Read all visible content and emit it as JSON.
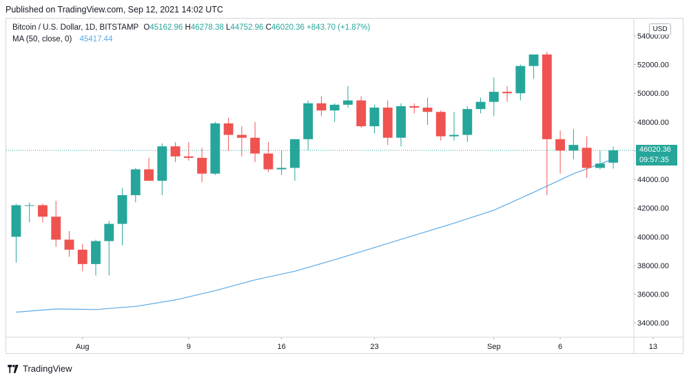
{
  "published": "Published on TradingView.com, Sep 12, 2021 14:02 UTC",
  "legend": {
    "title": "Bitcoin / U.S. Dollar, 1D, BITSTAMP",
    "open_key": "O",
    "open": "45162.96",
    "high_key": "H",
    "high": "46278.38",
    "low_key": "L",
    "low": "44752.96",
    "close_key": "C",
    "close": "46020.36",
    "change": "+843.70 (+1.87%)",
    "ma_label": "MA (50, close, 0)",
    "ma_value": "45417.44"
  },
  "currency_button": "USD",
  "last_price_tag": "46020.36",
  "countdown_tag": "09:57:35",
  "logo_text": "TradingView",
  "colors": {
    "up": "#26a69a",
    "down": "#ef5350",
    "ma": "#5aa9e6",
    "grid": "#e6e9ee",
    "text": "#131722"
  },
  "chart_data": {
    "type": "candlestick",
    "title": "Bitcoin / U.S. Dollar, 1D, BITSTAMP",
    "ylim": [
      33000,
      55200
    ],
    "y_ticks": [
      34000,
      36000,
      38000,
      40000,
      42000,
      44000,
      46000,
      48000,
      50000,
      52000,
      54000
    ],
    "y_tick_labels": [
      "34000.00",
      "36000.00",
      "38000.00",
      "40000.00",
      "42000.00",
      "44000.00",
      "46000.00",
      "48000.00",
      "50000.00",
      "52000.00",
      "54000.00"
    ],
    "x_labels": [
      {
        "date": "2021-08-01",
        "label": "Aug"
      },
      {
        "date": "2021-08-09",
        "label": "9"
      },
      {
        "date": "2021-08-16",
        "label": "16"
      },
      {
        "date": "2021-08-23",
        "label": "23"
      },
      {
        "date": "2021-09-01",
        "label": "Sep"
      },
      {
        "date": "2021-09-06",
        "label": "6"
      },
      {
        "date": "2021-09-13",
        "label": "13"
      }
    ],
    "x_range": [
      "2021-07-27",
      "2021-09-13"
    ],
    "last_price": 46020.36,
    "candles": [
      {
        "date": "2021-07-27",
        "o": 40000,
        "h": 42300,
        "l": 38200,
        "c": 42200
      },
      {
        "date": "2021-07-28",
        "o": 42200,
        "h": 42400,
        "l": 41000,
        "c": 42200
      },
      {
        "date": "2021-07-29",
        "o": 42200,
        "h": 42300,
        "l": 41000,
        "c": 41400
      },
      {
        "date": "2021-07-30",
        "o": 41400,
        "h": 42500,
        "l": 39300,
        "c": 39800
      },
      {
        "date": "2021-07-31",
        "o": 39800,
        "h": 40400,
        "l": 38600,
        "c": 39100
      },
      {
        "date": "2021-08-01",
        "o": 39100,
        "h": 39500,
        "l": 37600,
        "c": 38100
      },
      {
        "date": "2021-08-02",
        "o": 38100,
        "h": 39800,
        "l": 37300,
        "c": 39700
      },
      {
        "date": "2021-08-03",
        "o": 39700,
        "h": 41100,
        "l": 37300,
        "c": 40900
      },
      {
        "date": "2021-08-04",
        "o": 40900,
        "h": 43400,
        "l": 39400,
        "c": 42900
      },
      {
        "date": "2021-08-05",
        "o": 42900,
        "h": 44800,
        "l": 42400,
        "c": 44700
      },
      {
        "date": "2021-08-06",
        "o": 44700,
        "h": 45500,
        "l": 43900,
        "c": 43900
      },
      {
        "date": "2021-08-07",
        "o": 43900,
        "h": 46500,
        "l": 42900,
        "c": 46300
      },
      {
        "date": "2021-08-08",
        "o": 46300,
        "h": 46600,
        "l": 45200,
        "c": 45600
      },
      {
        "date": "2021-08-09",
        "o": 45600,
        "h": 46600,
        "l": 45300,
        "c": 45500
      },
      {
        "date": "2021-08-10",
        "o": 45500,
        "h": 46200,
        "l": 43800,
        "c": 44400
      },
      {
        "date": "2021-08-11",
        "o": 44400,
        "h": 48000,
        "l": 44300,
        "c": 47900
      },
      {
        "date": "2021-08-12",
        "o": 47900,
        "h": 48300,
        "l": 46000,
        "c": 47100
      },
      {
        "date": "2021-08-13",
        "o": 47100,
        "h": 47700,
        "l": 45600,
        "c": 46900
      },
      {
        "date": "2021-08-14",
        "o": 46900,
        "h": 48000,
        "l": 45200,
        "c": 45800
      },
      {
        "date": "2021-08-15",
        "o": 45800,
        "h": 46600,
        "l": 44500,
        "c": 44700
      },
      {
        "date": "2021-08-16",
        "o": 44700,
        "h": 46000,
        "l": 44300,
        "c": 44800
      },
      {
        "date": "2021-08-17",
        "o": 44800,
        "h": 46800,
        "l": 43900,
        "c": 46800
      },
      {
        "date": "2021-08-18",
        "o": 46800,
        "h": 49500,
        "l": 46000,
        "c": 49300
      },
      {
        "date": "2021-08-19",
        "o": 49300,
        "h": 49800,
        "l": 48400,
        "c": 48800
      },
      {
        "date": "2021-08-20",
        "o": 48800,
        "h": 49300,
        "l": 48000,
        "c": 49200
      },
      {
        "date": "2021-08-21",
        "o": 49200,
        "h": 50500,
        "l": 49000,
        "c": 49500
      },
      {
        "date": "2021-08-22",
        "o": 49500,
        "h": 49800,
        "l": 47600,
        "c": 47700
      },
      {
        "date": "2021-08-23",
        "o": 47700,
        "h": 49200,
        "l": 47200,
        "c": 49000
      },
      {
        "date": "2021-08-24",
        "o": 49000,
        "h": 49500,
        "l": 46400,
        "c": 46900
      },
      {
        "date": "2021-08-25",
        "o": 46900,
        "h": 49300,
        "l": 46300,
        "c": 49100
      },
      {
        "date": "2021-08-26",
        "o": 49100,
        "h": 49300,
        "l": 48600,
        "c": 49000
      },
      {
        "date": "2021-08-27",
        "o": 49000,
        "h": 49700,
        "l": 47800,
        "c": 48700
      },
      {
        "date": "2021-08-28",
        "o": 48700,
        "h": 48800,
        "l": 46700,
        "c": 47000
      },
      {
        "date": "2021-08-29",
        "o": 47000,
        "h": 48700,
        "l": 46700,
        "c": 47100
      },
      {
        "date": "2021-08-30",
        "o": 47100,
        "h": 49100,
        "l": 46600,
        "c": 48900
      },
      {
        "date": "2021-08-31",
        "o": 48900,
        "h": 49700,
        "l": 48600,
        "c": 49400
      },
      {
        "date": "2021-09-01",
        "o": 49400,
        "h": 51100,
        "l": 48400,
        "c": 50100
      },
      {
        "date": "2021-09-02",
        "o": 50100,
        "h": 50500,
        "l": 49400,
        "c": 50000
      },
      {
        "date": "2021-09-03",
        "o": 50000,
        "h": 52000,
        "l": 49500,
        "c": 51900
      },
      {
        "date": "2021-09-04",
        "o": 51900,
        "h": 52700,
        "l": 51000,
        "c": 52700
      },
      {
        "date": "2021-09-05",
        "o": 52700,
        "h": 52900,
        "l": 42900,
        "c": 46800
      },
      {
        "date": "2021-09-06",
        "o": 46800,
        "h": 47400,
        "l": 44400,
        "c": 46000
      },
      {
        "date": "2021-09-07",
        "o": 46000,
        "h": 47500,
        "l": 45400,
        "c": 46400
      },
      {
        "date": "2021-09-08",
        "o": 46200,
        "h": 47000,
        "l": 44100,
        "c": 44800
      },
      {
        "date": "2021-09-09",
        "o": 44800,
        "h": 46000,
        "l": 44700,
        "c": 45100
      },
      {
        "date": "2021-09-10",
        "o": 45162.96,
        "h": 46278.38,
        "l": 44752.96,
        "c": 46020.36
      }
    ],
    "ma": {
      "name": "MA (50, close, 0)",
      "points": [
        {
          "date": "2021-07-27",
          "v": 34750
        },
        {
          "date": "2021-07-30",
          "v": 34970
        },
        {
          "date": "2021-08-02",
          "v": 34930
        },
        {
          "date": "2021-08-05",
          "v": 35150
        },
        {
          "date": "2021-08-08",
          "v": 35600
        },
        {
          "date": "2021-08-11",
          "v": 36250
        },
        {
          "date": "2021-08-14",
          "v": 37000
        },
        {
          "date": "2021-08-17",
          "v": 37600
        },
        {
          "date": "2021-08-20",
          "v": 38400
        },
        {
          "date": "2021-08-23",
          "v": 39250
        },
        {
          "date": "2021-08-26",
          "v": 40100
        },
        {
          "date": "2021-08-29",
          "v": 40950
        },
        {
          "date": "2021-09-01",
          "v": 41850
        },
        {
          "date": "2021-09-04",
          "v": 43100
        },
        {
          "date": "2021-09-07",
          "v": 44400
        },
        {
          "date": "2021-09-10",
          "v": 45417.44
        }
      ]
    }
  }
}
